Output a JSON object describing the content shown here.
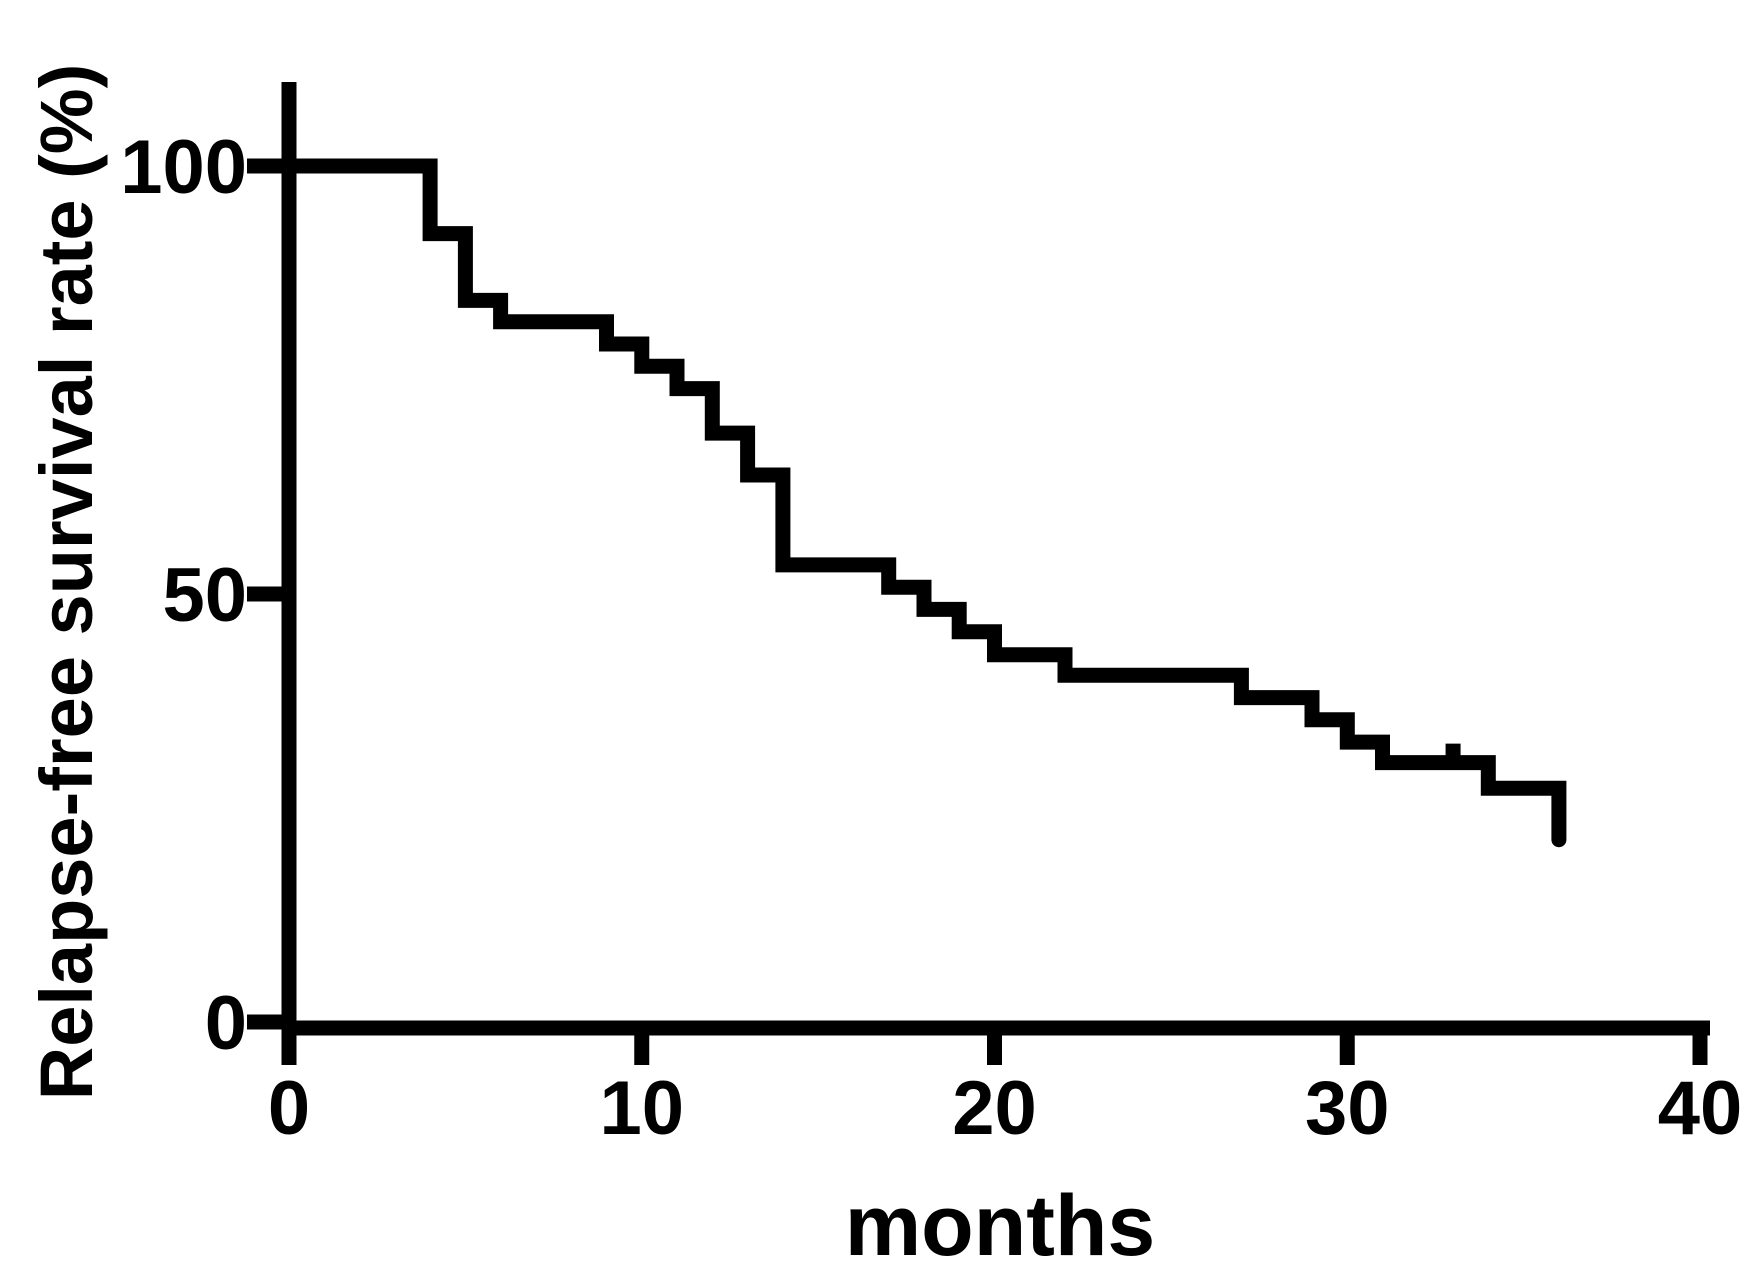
{
  "figure": {
    "background_color": "#ffffff",
    "line_color": "#000000"
  },
  "chart_data": {
    "type": "line",
    "subtype": "kaplan-meier-step-curve",
    "title": "",
    "xlabel": "months",
    "ylabel": "Relapse-free survival rate (%)",
    "xlim": [
      0,
      40
    ],
    "ylim": [
      0,
      100
    ],
    "x_ticks": [
      0,
      10,
      20,
      30,
      40
    ],
    "y_ticks": [
      0,
      50,
      100
    ],
    "grid": false,
    "legend": false,
    "series": [
      {
        "name": "Relapse-free survival rate",
        "color": "#000000",
        "start": {
          "t": 0,
          "s": 100
        },
        "steps": [
          {
            "t": 4,
            "s": 92.1
          },
          {
            "t": 5,
            "s": 84.3
          },
          {
            "t": 6,
            "s": 81.8
          },
          {
            "t": 9,
            "s": 79.2
          },
          {
            "t": 10,
            "s": 76.6
          },
          {
            "t": 11,
            "s": 74.0
          },
          {
            "t": 12,
            "s": 68.8
          },
          {
            "t": 13,
            "s": 63.9
          },
          {
            "t": 14,
            "s": 53.4
          },
          {
            "t": 17,
            "s": 50.8
          },
          {
            "t": 18,
            "s": 48.2
          },
          {
            "t": 19,
            "s": 45.6
          },
          {
            "t": 20,
            "s": 42.9
          },
          {
            "t": 22,
            "s": 40.5
          },
          {
            "t": 27,
            "s": 37.9
          },
          {
            "t": 29,
            "s": 35.3
          },
          {
            "t": 30,
            "s": 32.7
          },
          {
            "t": 31,
            "s": 30.3
          },
          {
            "t": 34,
            "s": 27.3
          },
          {
            "t": 36,
            "s": 21.3
          }
        ],
        "end_time": 36,
        "censor_marks": [
          {
            "t": 33,
            "s": 30.3
          }
        ]
      }
    ]
  }
}
